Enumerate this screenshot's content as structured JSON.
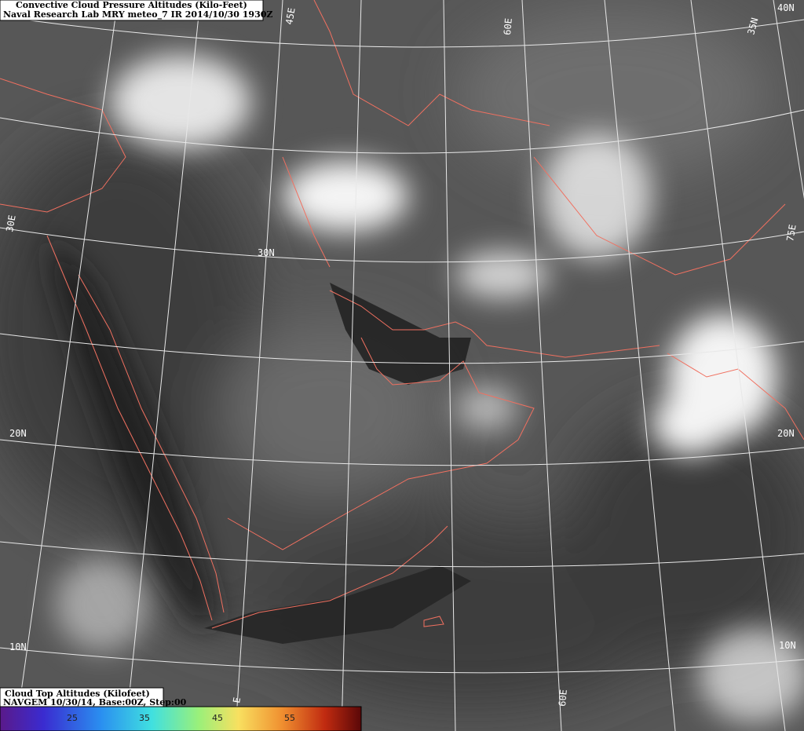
{
  "header": {
    "title": "Convective Cloud Pressure Altitudes (Kilo-Feet)",
    "subtitle": "Naval Research Lab MRY meteo_7 IR 2014/10/30 1930Z"
  },
  "grid_labels": [
    "45E",
    "60E",
    "40N",
    "35N",
    "30E",
    "75E",
    "30N",
    "20N",
    "20N",
    "10N",
    "10N",
    "60E",
    "E"
  ],
  "legend": {
    "title": "Cloud Top Altitudes (Kilofeet)",
    "subtitle": "NAVGEM 10/30/14, Base:00Z, Step:00",
    "ticks": [
      "25",
      "35",
      "45",
      "55"
    ]
  }
}
